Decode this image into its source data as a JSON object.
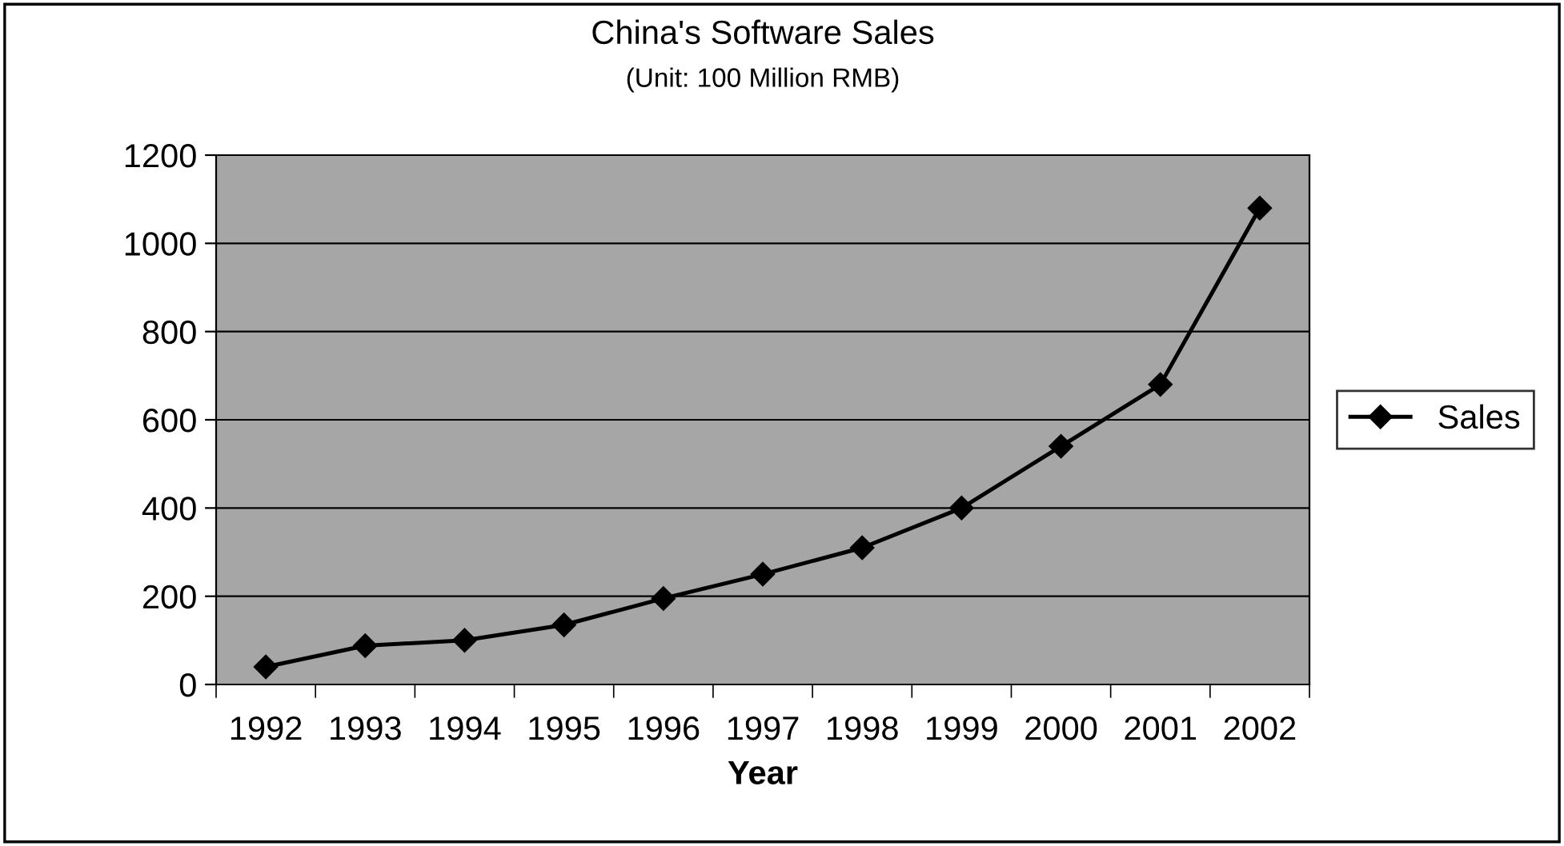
{
  "chart_data": {
    "type": "line",
    "title": "China's Software Sales",
    "subtitle": "(Unit: 100 Million RMB)",
    "xlabel": "Year",
    "categories": [
      "1992",
      "1993",
      "1994",
      "1995",
      "1996",
      "1997",
      "1998",
      "1999",
      "2000",
      "2001",
      "2002"
    ],
    "series": [
      {
        "name": "Sales",
        "color": "#000000",
        "values": [
          40,
          88,
          100,
          135,
          195,
          250,
          310,
          400,
          540,
          680,
          1080
        ]
      }
    ],
    "ylim": [
      0,
      1200
    ],
    "yticks": [
      0,
      200,
      400,
      600,
      800,
      1000,
      1200
    ],
    "grid": "y",
    "legend": "right",
    "marker": "diamond",
    "line_style": "solid"
  }
}
